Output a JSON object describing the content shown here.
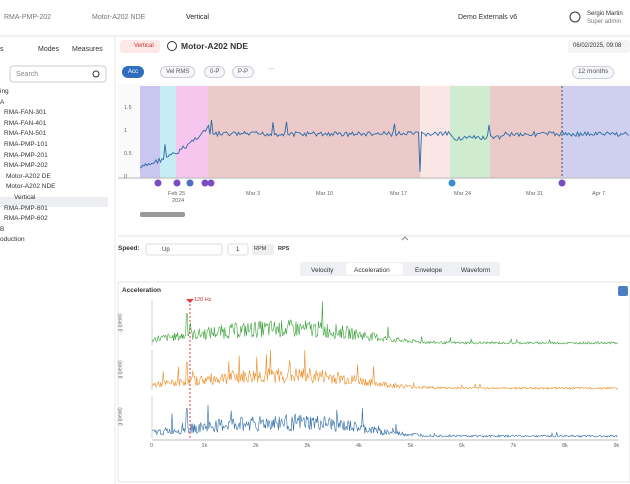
{
  "topbar": {
    "breadcrumb": [
      "RMA-PMP-202",
      "Motor-A202 NDE",
      "Vertical"
    ],
    "org": "Demo Externals v6",
    "user": "Sergio Martin",
    "role": "Super admin"
  },
  "sidebar": {
    "tabs": [
      "s",
      "Modes",
      "Measures"
    ],
    "search": "Search",
    "tree": [
      "ing",
      "A",
      "RMA-FAN-301",
      "RMA-FAN-401",
      "RMA-FAN-501",
      "RMA-PMP-101",
      "RMA-PMP-201",
      "RMA-PMP-202",
      "Motor-A202 DE",
      "Motor-A202 NDE",
      "Vertical",
      "RMA-PMP-601",
      "RMA-PMP-602",
      "B",
      "oduction"
    ]
  },
  "header": {
    "badge": "Vertical",
    "title": "Motor-A202 NDE",
    "date": "06/02/2025, 09:08"
  },
  "toolbar": {
    "modes": [
      "Acc",
      "Vel RMS",
      "0-P",
      "P-P",
      "···"
    ],
    "range": "12 months"
  },
  "trend": {
    "yticks": [
      "1.5",
      "1",
      "0.5",
      "0"
    ],
    "xticks": [
      "Feb 25",
      "Mar 3",
      "Mar 10",
      "Mar 17",
      "Mar 24",
      "Mar 31",
      "Apr 7"
    ],
    "year": "2024"
  },
  "speed": {
    "label": "Speed:",
    "value": "Up",
    "ratio": "1",
    "units": [
      "RPM",
      "RPS"
    ]
  },
  "tabs": [
    "Velocity",
    "Acceleration",
    "Envelope",
    "Waveform"
  ],
  "spectrum": {
    "title": "Acceleration",
    "marker": "120 Hz",
    "ylabel": "g (peak)",
    "xticks": [
      "0",
      "1k",
      "2k",
      "3k",
      "4k",
      "5k",
      "6k",
      "7k",
      "8k",
      "9k"
    ]
  }
}
